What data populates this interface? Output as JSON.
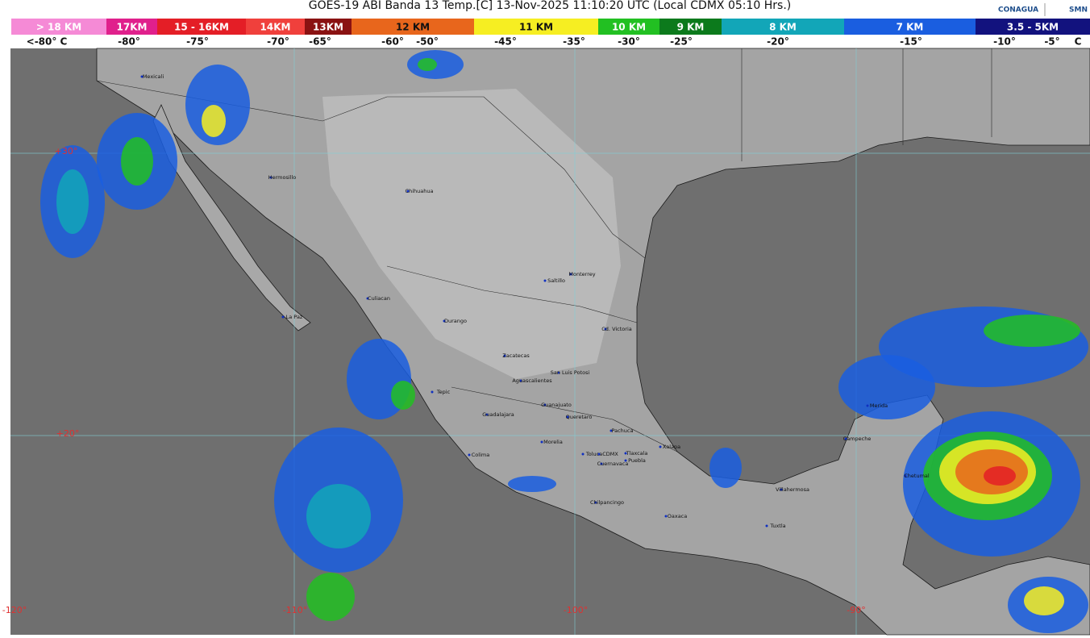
{
  "title": "GOES-19 ABI Banda 13 Temp.[C] 13-Nov-2025 11:10:20 UTC (Local CDMX  05:10 Hrs.)",
  "logos": [
    "CONAGUA",
    "SMN"
  ],
  "color_bar": [
    {
      "label": "> 18 KM",
      "color": "#f58ad6"
    },
    {
      "label": "17KM",
      "color": "#e0208c"
    },
    {
      "label": "15 - 16KM",
      "color": "#e41e26"
    },
    {
      "label": "14KM",
      "color": "#f0403c"
    },
    {
      "label": "13KM",
      "color": "#8a1212"
    },
    {
      "label": "12 KM",
      "color": "#e8661c"
    },
    {
      "label": "11 KM",
      "color": "#f6ee22"
    },
    {
      "label": "10 KM",
      "color": "#22c022"
    },
    {
      "label": "9 KM",
      "color": "#0c7a1c"
    },
    {
      "label": "8 KM",
      "color": "#12a6b8"
    },
    {
      "label": "7 KM",
      "color": "#1a5ee0"
    },
    {
      "label": "3.5 - 5KM",
      "color": "#12127e"
    }
  ],
  "temperature_labels": [
    "<-80° C",
    "-80°",
    "-75°",
    "-70°",
    "-65°",
    "-60°",
    "-50°",
    "-45°",
    "-35°",
    "-30°",
    "-25°",
    "-20°",
    "-15°",
    "-10°",
    "-5°",
    "C"
  ],
  "grid_labels": [
    "+30°",
    "+20°",
    "-120°",
    "-110°",
    "-100°",
    "-90°"
  ],
  "cities": [
    "Mexicali",
    "Hermosillo",
    "Chihuahua",
    "Monterrey",
    "Saltillo",
    "Culiacan",
    "La Paz",
    "Durango",
    "Cd. Victoria",
    "Zacatecas",
    "San Luis Potosi",
    "Aguascalientes",
    "Tepic",
    "Guanajuato",
    "Guadalajara",
    "Queretaro",
    "Pachuca",
    "Morelia",
    "Xalapa",
    "Tlaxcala",
    "Colima",
    "Toluca",
    "CDMX",
    "Puebla",
    "Cuernavaca",
    "Chilpancingo",
    "Oaxaca",
    "Villahermosa",
    "Tuxtla",
    "Merida",
    "Campeche",
    "Chetumal"
  ]
}
